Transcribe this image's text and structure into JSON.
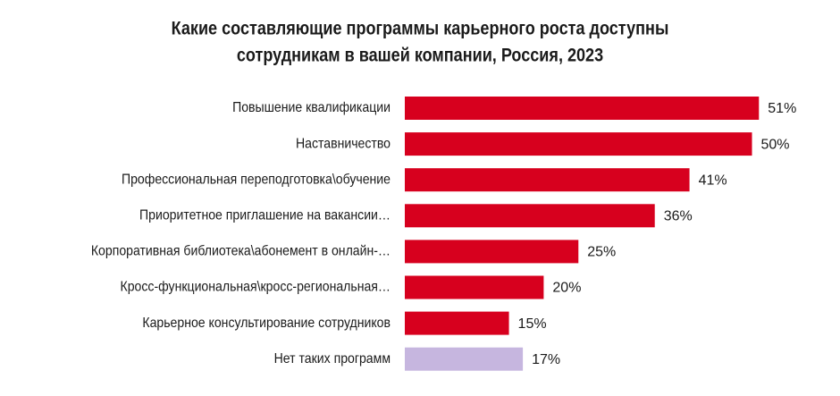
{
  "chart_data": {
    "type": "bar",
    "orientation": "horizontal",
    "title": [
      "Какие составляющие программы карьерного роста доступны",
      "сотрудникам в вашей компании, Россия, 2023"
    ],
    "categories": [
      "Повышение квалификации",
      "Наставничество",
      "Профессиональная переподготовка\\обучение",
      "Приоритетное приглашение на вакансии…",
      "Корпоративная библиотека\\абонемент в онлайн-…",
      "Кросс-функциональная\\кросс-региональная…",
      "Карьерное консультирование сотрудников",
      "Нет таких программ"
    ],
    "values": [
      51,
      50,
      41,
      36,
      25,
      20,
      15,
      17
    ],
    "value_labels": [
      "51%",
      "50%",
      "41%",
      "36%",
      "25%",
      "20%",
      "15%",
      "17%"
    ],
    "colors": [
      "#d7001e",
      "#d7001e",
      "#d7001e",
      "#d7001e",
      "#d7001e",
      "#d7001e",
      "#d7001e",
      "#c6b6df"
    ]
  }
}
